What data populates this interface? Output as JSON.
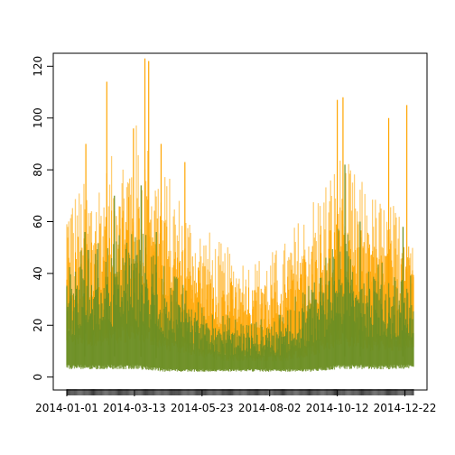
{
  "chart_data": {
    "type": "area",
    "title": "",
    "xlabel": "",
    "ylabel": "",
    "x_range": [
      "2014-01-01",
      "2014-12-31"
    ],
    "ylim": [
      -5,
      125
    ],
    "grid": false,
    "legend": "none",
    "x_ticks": [
      {
        "date": "2014-01-01",
        "label": "2014-01-01"
      },
      {
        "date": "2014-03-13",
        "label": "2014-03-13"
      },
      {
        "date": "2014-05-23",
        "label": "2014-05-23"
      },
      {
        "date": "2014-08-02",
        "label": "2014-08-02"
      },
      {
        "date": "2014-10-12",
        "label": "2014-10-12"
      },
      {
        "date": "2014-12-22",
        "label": "2014-12-22"
      }
    ],
    "y_ticks": [
      {
        "value": 0,
        "label": "0"
      },
      {
        "value": 20,
        "label": "20"
      },
      {
        "value": 40,
        "label": "40"
      },
      {
        "value": 60,
        "label": "60"
      },
      {
        "value": 80,
        "label": "80"
      },
      {
        "value": 100,
        "label": "100"
      },
      {
        "value": 120,
        "label": "120"
      }
    ],
    "series": [
      {
        "color": "#FFA500",
        "band_upper_monthly": [
          {
            "date": "2014-01-15",
            "value": 62
          },
          {
            "date": "2014-02-15",
            "value": 70
          },
          {
            "date": "2014-03-15",
            "value": 82
          },
          {
            "date": "2014-04-15",
            "value": 66
          },
          {
            "date": "2014-05-15",
            "value": 52
          },
          {
            "date": "2014-06-15",
            "value": 42
          },
          {
            "date": "2014-07-15",
            "value": 38
          },
          {
            "date": "2014-08-15",
            "value": 42
          },
          {
            "date": "2014-09-15",
            "value": 58
          },
          {
            "date": "2014-10-15",
            "value": 72
          },
          {
            "date": "2014-11-15",
            "value": 60
          },
          {
            "date": "2014-12-15",
            "value": 55
          }
        ],
        "band_lower_monthly": [
          {
            "date": "2014-01-15",
            "value": 12
          },
          {
            "date": "2014-02-15",
            "value": 12
          },
          {
            "date": "2014-03-15",
            "value": 14
          },
          {
            "date": "2014-04-15",
            "value": 10
          },
          {
            "date": "2014-05-15",
            "value": 8
          },
          {
            "date": "2014-06-15",
            "value": 6
          },
          {
            "date": "2014-07-15",
            "value": 6
          },
          {
            "date": "2014-08-15",
            "value": 6
          },
          {
            "date": "2014-09-15",
            "value": 8
          },
          {
            "date": "2014-10-15",
            "value": 12
          },
          {
            "date": "2014-11-15",
            "value": 10
          },
          {
            "date": "2014-12-15",
            "value": 10
          }
        ],
        "peaks": [
          {
            "date": "2014-01-21",
            "value": 90
          },
          {
            "date": "2014-02-12",
            "value": 114
          },
          {
            "date": "2014-03-12",
            "value": 96
          },
          {
            "date": "2014-03-24",
            "value": 123
          },
          {
            "date": "2014-03-28",
            "value": 122
          },
          {
            "date": "2014-04-10",
            "value": 90
          },
          {
            "date": "2014-05-05",
            "value": 83
          },
          {
            "date": "2014-10-12",
            "value": 107
          },
          {
            "date": "2014-10-18",
            "value": 108
          },
          {
            "date": "2014-12-05",
            "value": 100
          },
          {
            "date": "2014-12-24",
            "value": 105
          }
        ]
      },
      {
        "color": "#6B8E23",
        "band_upper_monthly": [
          {
            "date": "2014-01-15",
            "value": 40
          },
          {
            "date": "2014-02-15",
            "value": 44
          },
          {
            "date": "2014-03-15",
            "value": 50
          },
          {
            "date": "2014-04-15",
            "value": 36
          },
          {
            "date": "2014-05-15",
            "value": 25
          },
          {
            "date": "2014-06-15",
            "value": 20
          },
          {
            "date": "2014-07-15",
            "value": 18
          },
          {
            "date": "2014-08-15",
            "value": 20
          },
          {
            "date": "2014-09-15",
            "value": 32
          },
          {
            "date": "2014-10-15",
            "value": 48
          },
          {
            "date": "2014-11-15",
            "value": 38
          },
          {
            "date": "2014-12-15",
            "value": 34
          }
        ],
        "band_lower_monthly": [
          {
            "date": "2014-01-15",
            "value": 3
          },
          {
            "date": "2014-02-15",
            "value": 3
          },
          {
            "date": "2014-03-15",
            "value": 3
          },
          {
            "date": "2014-04-15",
            "value": 2
          },
          {
            "date": "2014-05-15",
            "value": 2
          },
          {
            "date": "2014-06-15",
            "value": 2
          },
          {
            "date": "2014-07-15",
            "value": 2
          },
          {
            "date": "2014-08-15",
            "value": 2
          },
          {
            "date": "2014-09-15",
            "value": 2
          },
          {
            "date": "2014-10-15",
            "value": 3
          },
          {
            "date": "2014-11-15",
            "value": 3
          },
          {
            "date": "2014-12-15",
            "value": 3
          }
        ],
        "peaks": [
          {
            "date": "2014-01-20",
            "value": 56
          },
          {
            "date": "2014-02-20",
            "value": 70
          },
          {
            "date": "2014-03-20",
            "value": 74
          },
          {
            "date": "2014-04-05",
            "value": 56
          },
          {
            "date": "2014-10-20",
            "value": 82
          },
          {
            "date": "2014-11-05",
            "value": 60
          },
          {
            "date": "2014-12-20",
            "value": 58
          }
        ]
      }
    ]
  }
}
